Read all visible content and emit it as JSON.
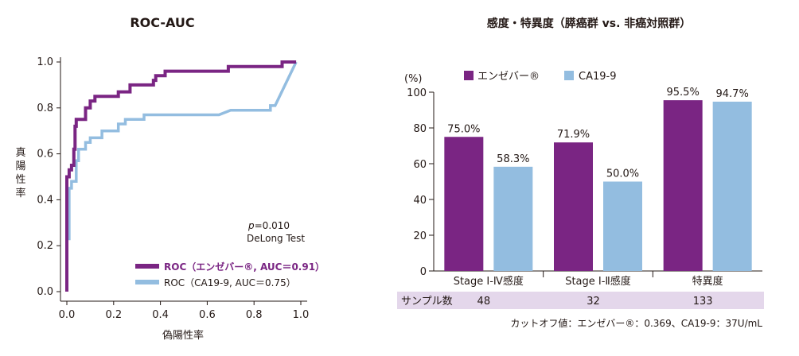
{
  "chart_data": [
    {
      "type": "line",
      "title": "ROC-AUC",
      "xlabel": "偽陽性率",
      "ylabel": "真陽性率",
      "xlim": [
        0,
        1
      ],
      "ylim": [
        0,
        1
      ],
      "xticks": [
        "0.0",
        "0.2",
        "0.4",
        "0.6",
        "0.8",
        "1.0"
      ],
      "yticks": [
        "0.0",
        "0.2",
        "0.4",
        "0.6",
        "0.8",
        "1.0"
      ],
      "annotation": {
        "p_label": "p",
        "p_value": "=0.010",
        "test": "DeLong Test"
      },
      "series": [
        {
          "name": "ROC（エンゼバー®, AUC＝0.91）",
          "color": "#7a2583",
          "points": [
            [
              0,
              0
            ],
            [
              0,
              0.5
            ],
            [
              0.01,
              0.5
            ],
            [
              0.01,
              0.53
            ],
            [
              0.02,
              0.53
            ],
            [
              0.02,
              0.55
            ],
            [
              0.03,
              0.55
            ],
            [
              0.03,
              0.62
            ],
            [
              0.035,
              0.62
            ],
            [
              0.035,
              0.72
            ],
            [
              0.04,
              0.72
            ],
            [
              0.04,
              0.75
            ],
            [
              0.08,
              0.75
            ],
            [
              0.08,
              0.8
            ],
            [
              0.1,
              0.8
            ],
            [
              0.1,
              0.83
            ],
            [
              0.12,
              0.83
            ],
            [
              0.12,
              0.85
            ],
            [
              0.22,
              0.85
            ],
            [
              0.22,
              0.87
            ],
            [
              0.27,
              0.87
            ],
            [
              0.27,
              0.9
            ],
            [
              0.37,
              0.9
            ],
            [
              0.37,
              0.92
            ],
            [
              0.38,
              0.92
            ],
            [
              0.38,
              0.94
            ],
            [
              0.42,
              0.94
            ],
            [
              0.42,
              0.96
            ],
            [
              0.69,
              0.96
            ],
            [
              0.69,
              0.98
            ],
            [
              0.92,
              0.98
            ],
            [
              0.92,
              1.0
            ],
            [
              0.98,
              1.0
            ]
          ]
        },
        {
          "name": "ROC（CA19-9, AUC＝0.75）",
          "color": "#93bde0",
          "points": [
            [
              0,
              0.23
            ],
            [
              0.01,
              0.23
            ],
            [
              0.01,
              0.45
            ],
            [
              0.02,
              0.45
            ],
            [
              0.02,
              0.48
            ],
            [
              0.04,
              0.48
            ],
            [
              0.04,
              0.57
            ],
            [
              0.05,
              0.57
            ],
            [
              0.05,
              0.62
            ],
            [
              0.08,
              0.62
            ],
            [
              0.08,
              0.65
            ],
            [
              0.1,
              0.65
            ],
            [
              0.1,
              0.67
            ],
            [
              0.15,
              0.67
            ],
            [
              0.15,
              0.7
            ],
            [
              0.22,
              0.7
            ],
            [
              0.22,
              0.73
            ],
            [
              0.25,
              0.73
            ],
            [
              0.25,
              0.75
            ],
            [
              0.33,
              0.75
            ],
            [
              0.33,
              0.77
            ],
            [
              0.65,
              0.77
            ],
            [
              0.7,
              0.79
            ],
            [
              0.87,
              0.79
            ],
            [
              0.87,
              0.81
            ],
            [
              0.89,
              0.81
            ],
            [
              0.98,
              1.0
            ]
          ]
        }
      ]
    },
    {
      "type": "bar",
      "title": "感度・特異度（膵癌群 vs. 非癌対照群）",
      "ylabel": "(%)",
      "ylim": [
        0,
        100
      ],
      "yticks": [
        "0",
        "20",
        "40",
        "60",
        "80",
        "100"
      ],
      "categories": [
        "Stage Ⅰ-Ⅳ感度",
        "Stage Ⅰ-Ⅱ感度",
        "特異度"
      ],
      "series": [
        {
          "name": "エンゼバー®",
          "color": "#7a2583",
          "values": [
            75.0,
            71.9,
            95.5
          ],
          "labels": [
            "75.0%",
            "71.9%",
            "95.5%"
          ]
        },
        {
          "name": "CA19-9",
          "color": "#93bde0",
          "values": [
            58.3,
            50.0,
            94.7
          ],
          "labels": [
            "58.3%",
            "50.0%",
            "94.7%"
          ]
        }
      ],
      "sample_row": {
        "label": "サンプル数",
        "values": [
          "48",
          "32",
          "133"
        ]
      },
      "footnote": "カットオフ値：エンゼバー®：0.369、CA19-9：37U/mL"
    }
  ]
}
